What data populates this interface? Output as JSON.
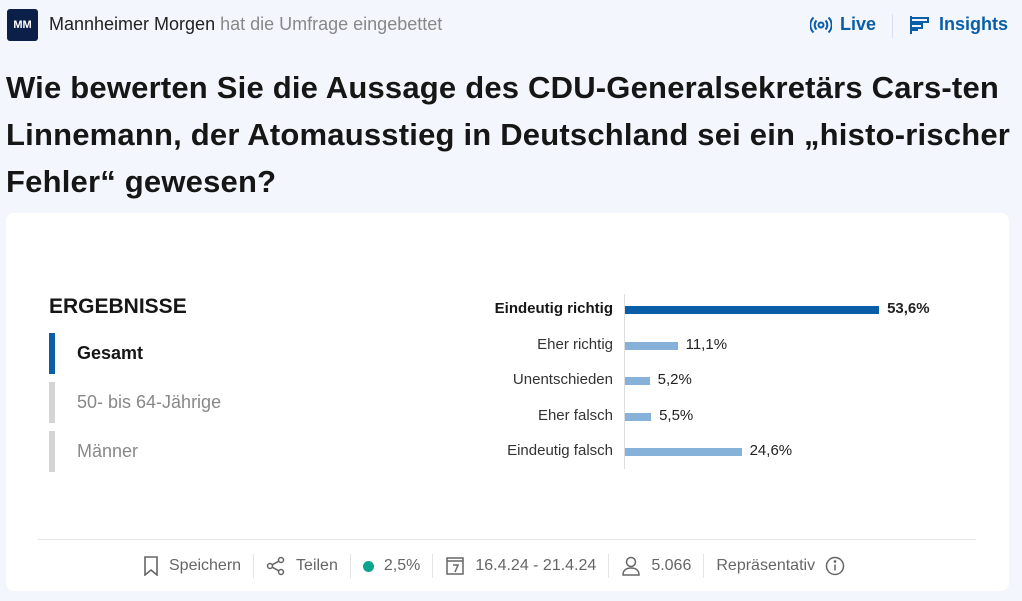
{
  "header": {
    "logo_text": "MM",
    "publisher": "Mannheimer Morgen",
    "embed_text": "hat die Umfrage eingebettet",
    "live_label": "Live",
    "insights_label": "Insights"
  },
  "question": "Wie bewerten Sie die Aussage des CDU-Generalsekretärs Cars-ten Linnemann, der Atomausstieg in Deutschland sei ein „histo-rischer Fehler“ gewesen?",
  "results": {
    "title": "ERGEBNISSE",
    "tabs": [
      {
        "label": "Gesamt",
        "active": true
      },
      {
        "label": "50- bis 64-Jährige",
        "active": false
      },
      {
        "label": "Männer",
        "active": false
      }
    ]
  },
  "chart_data": {
    "type": "bar",
    "orientation": "horizontal",
    "categories": [
      "Eindeutig richtig",
      "Eher richtig",
      "Unentschieden",
      "Eher falsch",
      "Eindeutig falsch"
    ],
    "values": [
      53.6,
      11.1,
      5.2,
      5.5,
      24.6
    ],
    "value_labels": [
      "53,6%",
      "11,1%",
      "5,2%",
      "5,5%",
      "24,6%"
    ],
    "colors": {
      "top": "#0a5ea8",
      "other": "#86b2d9"
    }
  },
  "footer": {
    "save_label": "Speichern",
    "share_label": "Teilen",
    "margin_of_error": "2,5%",
    "date_range": "16.4.24 - 21.4.24",
    "respondents": "5.066",
    "representative_label": "Repräsentativ"
  }
}
